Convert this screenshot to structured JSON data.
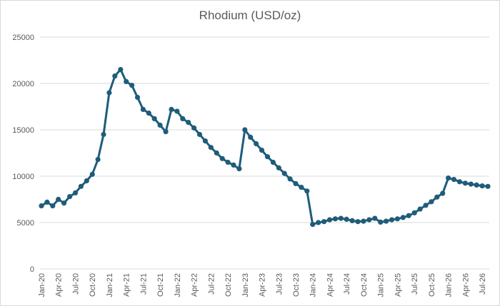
{
  "chart_data": {
    "type": "line",
    "title": "Rhodium (USD/oz)",
    "xlabel": "",
    "ylabel": "",
    "ylim": [
      0,
      25000
    ],
    "yticks": [
      0,
      5000,
      10000,
      15000,
      20000,
      25000
    ],
    "grid": true,
    "line_color": "#1f5c7a",
    "x_tick_labels": [
      "Jan-20",
      "Apr-20",
      "Jul-20",
      "Oct-20",
      "Jan-21",
      "Apr-21",
      "Jul-21",
      "Oct-21",
      "Jan-22",
      "Apr-22",
      "Jul-22",
      "Oct-22",
      "Jan-23",
      "Apr-23",
      "Jul-23",
      "Oct-23",
      "Jan-24",
      "Apr-24",
      "Jul-24",
      "Oct-24",
      "Jan-25",
      "Apr-25",
      "Jul-25",
      "Oct-25",
      "Jan-26",
      "Apr-26",
      "Jul-26"
    ],
    "series": [
      {
        "values": [
          6800,
          7200,
          6800,
          7500,
          7100,
          7800,
          8200,
          8900,
          9500,
          10200,
          11800,
          14500,
          19000,
          20800,
          21500,
          20200,
          19800,
          18500,
          17200,
          16800,
          16200,
          15500,
          14800,
          17200,
          17000,
          16200,
          15800,
          15200,
          14500,
          13800,
          13100,
          12500,
          11900,
          11500,
          11200,
          10800,
          15000,
          14200,
          13500,
          12800,
          12100,
          11500,
          10900,
          10300,
          9700,
          9200,
          8800,
          8400,
          4800,
          5000,
          5100,
          5300,
          5400,
          5450,
          5350,
          5200,
          5100,
          5150,
          5300,
          5450,
          5050,
          5150,
          5300,
          5400,
          5550,
          5750,
          6050,
          6450,
          6850,
          7250,
          7750,
          8150,
          9800,
          9650,
          9400,
          9250,
          9150,
          9050,
          8950,
          8900
        ]
      }
    ]
  }
}
